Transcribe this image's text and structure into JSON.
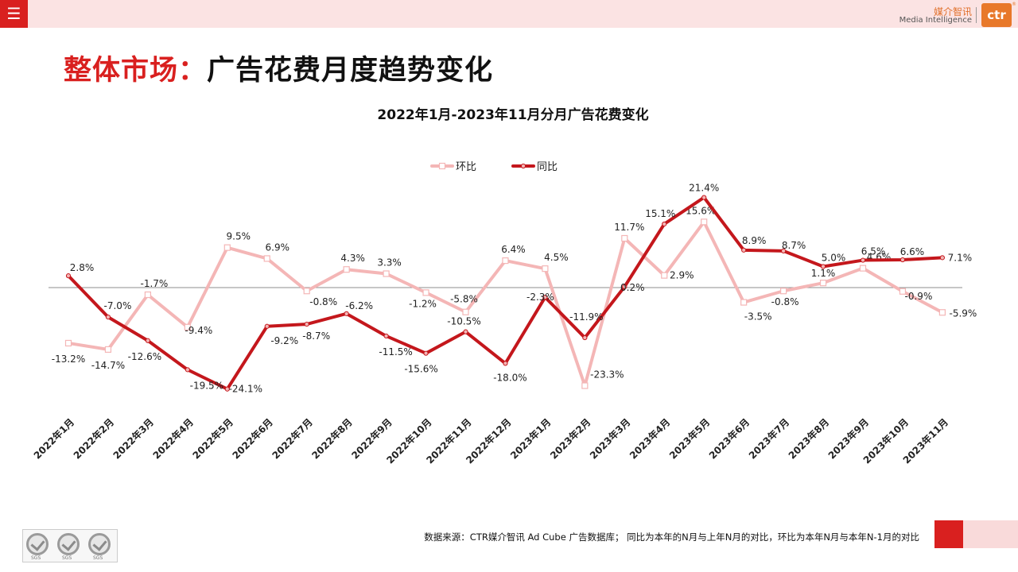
{
  "header": {
    "menu_icon": "menu-icon",
    "brand_cn": "媒介智讯",
    "brand_en": "Media Intelligence",
    "logo_text": "ctr",
    "logo_reg": "®"
  },
  "page_title": {
    "accent": "整体市场：",
    "rest": "广告花费月度趋势变化"
  },
  "chart_data": {
    "type": "line",
    "title": "2022年1月-2023年11月分月广告花费变化",
    "legend_position": "top-center",
    "categories": [
      "2022年1月",
      "2022年2月",
      "2022年3月",
      "2022年4月",
      "2022年5月",
      "2022年6月",
      "2022年7月",
      "2022年8月",
      "2022年9月",
      "2022年10月",
      "2022年11月",
      "2022年12月",
      "2023年1月",
      "2023年2月",
      "2023年3月",
      "2023年4月",
      "2023年5月",
      "2023年6月",
      "2023年7月",
      "2023年8月",
      "2023年9月",
      "2023年10月",
      "2023年11月"
    ],
    "series": [
      {
        "name": "环比",
        "color": "#f4b6b6",
        "values": [
          -13.2,
          -14.7,
          -1.7,
          -9.4,
          9.5,
          6.9,
          -0.8,
          4.3,
          3.3,
          -1.2,
          -5.8,
          6.4,
          4.5,
          -23.3,
          11.7,
          2.9,
          15.6,
          -3.5,
          -0.8,
          1.1,
          4.6,
          -0.9,
          -5.9
        ],
        "labels": [
          "-13.2%",
          "-14.7%",
          "-1.7%",
          "-9.4%",
          "9.5%",
          "6.9%",
          "-0.8%",
          "4.3%",
          "3.3%",
          "-1.2%",
          "-5.8%",
          "6.4%",
          "4.5%",
          "-23.3%",
          "11.7%",
          "2.9%",
          "15.6%",
          "-3.5%",
          "-0.8%",
          "1.1%",
          "4.6%",
          "-0.9%",
          "-5.9%"
        ]
      },
      {
        "name": "同比",
        "color": "#c4171c",
        "values": [
          2.8,
          -7.0,
          -12.6,
          -19.5,
          -24.1,
          -9.2,
          -8.7,
          -6.2,
          -11.5,
          -15.6,
          -10.5,
          -18.0,
          -2.3,
          -11.9,
          0.2,
          15.1,
          21.4,
          8.9,
          8.7,
          5.0,
          6.5,
          6.6,
          7.1
        ],
        "labels": [
          "2.8%",
          "-7.0%",
          "-12.6%",
          "-19.5%",
          "-24.1%",
          "-9.2%",
          "-8.7%",
          "-6.2%",
          "-11.5%",
          "-15.6%",
          "-10.5%",
          "-18.0%",
          "-2.3%",
          "-11.9%",
          "0.2%",
          "15.1%",
          "21.4%",
          "8.9%",
          "8.7%",
          "5.0%",
          "6.5%",
          "6.6%",
          "7.1%"
        ]
      }
    ],
    "axis_line_color": "#8c8c8c",
    "grid": false
  },
  "footer": {
    "source": "数据来源：CTR媒介智讯 Ad Cube 广告数据库； 同比为本年的N月与上年N月的对比，环比为本年N月与本年N-1月的对比",
    "badge_label": "SGS"
  }
}
